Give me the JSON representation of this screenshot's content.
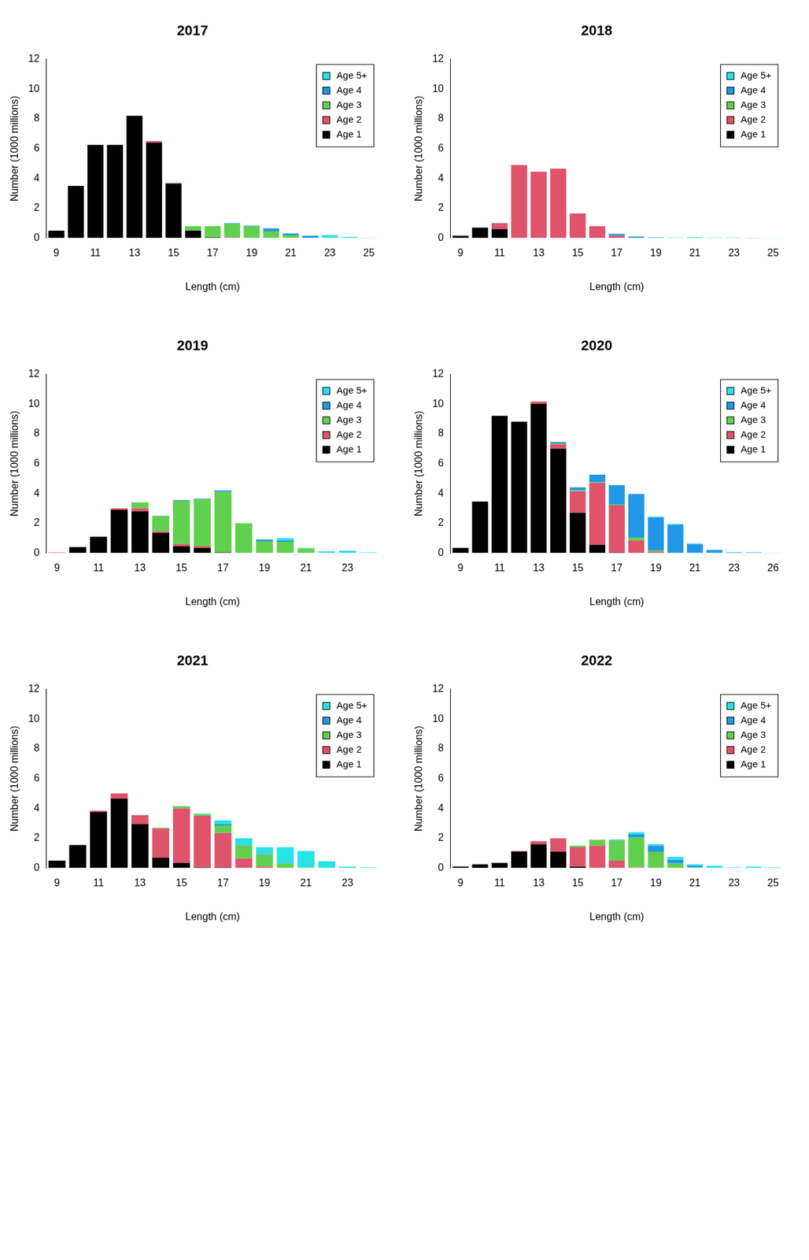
{
  "chart_data": [
    {
      "type": "bar",
      "title": "2017",
      "x_label": "Length (cm)",
      "y_label": "Number (1000 millions)",
      "categories": [
        "9",
        null,
        "11",
        null,
        "13",
        null,
        "15",
        null,
        "17",
        null,
        "19",
        null,
        "21",
        null,
        "23",
        null,
        "25"
      ],
      "series": [
        {
          "name": "Age 1",
          "color": "#000000",
          "values": [
            0.5,
            3.5,
            6.25,
            6.25,
            8.2,
            6.4,
            3.65,
            0.5,
            0.05,
            0,
            0,
            0,
            0,
            0,
            0,
            0,
            0
          ]
        },
        {
          "name": "Age 2",
          "color": "#DF536B",
          "values": [
            0,
            0,
            0,
            0,
            0,
            0.1,
            0,
            0,
            0,
            0.05,
            0,
            0,
            0,
            0,
            0,
            0,
            0
          ]
        },
        {
          "name": "Age 3",
          "color": "#61D04F",
          "values": [
            0,
            0,
            0,
            0,
            0,
            0,
            0.05,
            0.3,
            0.75,
            0.9,
            0.8,
            0.45,
            0.2,
            0,
            0,
            0,
            0
          ]
        },
        {
          "name": "Age 4",
          "color": "#2297E6",
          "values": [
            0,
            0,
            0,
            0,
            0,
            0,
            0,
            0,
            0,
            0.05,
            0.03,
            0.2,
            0.1,
            0.15,
            0,
            0,
            0
          ]
        },
        {
          "name": "Age 5+",
          "color": "#28E2E5",
          "values": [
            0,
            0,
            0,
            0,
            0,
            0,
            0,
            0,
            0,
            0,
            0,
            0.02,
            0.02,
            0.02,
            0.2,
            0.08,
            0.03
          ]
        }
      ],
      "ylim": [
        0,
        12
      ],
      "yticks": [
        0,
        2,
        4,
        6,
        8,
        10,
        12
      ],
      "stacked": true,
      "legend": "top-right",
      "grid": false
    },
    {
      "type": "bar",
      "title": "2018",
      "x_label": "Length (cm)",
      "y_label": "Number (1000 millions)",
      "categories": [
        "9",
        null,
        "11",
        null,
        "13",
        null,
        "15",
        null,
        "17",
        null,
        "19",
        null,
        "21",
        null,
        "23",
        null,
        "25"
      ],
      "series": [
        {
          "name": "Age 1",
          "color": "#000000",
          "values": [
            0.15,
            0.7,
            0.6,
            0,
            0,
            0,
            0,
            0,
            0,
            0,
            0,
            0,
            0,
            0,
            0,
            0,
            0
          ]
        },
        {
          "name": "Age 2",
          "color": "#DF536B",
          "values": [
            0,
            0,
            0.4,
            4.9,
            4.45,
            4.65,
            1.65,
            0.8,
            0.15,
            0,
            0,
            0,
            0,
            0,
            0,
            0,
            0
          ]
        },
        {
          "name": "Age 3",
          "color": "#61D04F",
          "values": [
            0,
            0,
            0,
            0,
            0,
            0,
            0,
            0,
            0.02,
            0,
            0,
            0,
            0,
            0,
            0,
            0,
            0
          ]
        },
        {
          "name": "Age 4",
          "color": "#2297E6",
          "values": [
            0,
            0,
            0,
            0,
            0,
            0,
            0,
            0,
            0.1,
            0.1,
            0.05,
            0.02,
            0.03,
            0.02,
            0.02,
            0.01,
            0
          ]
        },
        {
          "name": "Age 5+",
          "color": "#28E2E5",
          "values": [
            0,
            0,
            0,
            0,
            0,
            0,
            0,
            0,
            0.02,
            0.01,
            0.01,
            0.02,
            0.03,
            0.02,
            0.02,
            0.02,
            0.01
          ]
        }
      ],
      "ylim": [
        0,
        12
      ],
      "yticks": [
        0,
        2,
        4,
        6,
        8,
        10,
        12
      ],
      "stacked": true,
      "legend": "top-right",
      "grid": false
    },
    {
      "type": "bar",
      "title": "2019",
      "x_label": "Length (cm)",
      "y_label": "Number (1000 millions)",
      "categories": [
        "9",
        null,
        "11",
        null,
        "13",
        null,
        "15",
        null,
        "17",
        null,
        "19",
        null,
        "21",
        null,
        "23",
        null
      ],
      "series": [
        {
          "name": "Age 1",
          "color": "#000000",
          "values": [
            0,
            0.4,
            1.1,
            2.9,
            2.8,
            1.35,
            0.45,
            0.35,
            0.05,
            0,
            0,
            0,
            0,
            0,
            0,
            0
          ]
        },
        {
          "name": "Age 2",
          "color": "#DF536B",
          "values": [
            0.05,
            0,
            0,
            0.1,
            0.2,
            0.1,
            0.15,
            0.1,
            0,
            0,
            0,
            0,
            0,
            0,
            0,
            0
          ]
        },
        {
          "name": "Age 3",
          "color": "#61D04F",
          "values": [
            0,
            0,
            0,
            0,
            0.4,
            1.05,
            2.9,
            3.15,
            4.05,
            2.0,
            0.8,
            0.75,
            0.3,
            0.02,
            0,
            0
          ]
        },
        {
          "name": "Age 4",
          "color": "#2297E6",
          "values": [
            0,
            0,
            0,
            0,
            0,
            0,
            0.05,
            0.05,
            0.1,
            0,
            0.1,
            0.1,
            0,
            0.02,
            0.02,
            0
          ]
        },
        {
          "name": "Age 5+",
          "color": "#28E2E5",
          "values": [
            0,
            0,
            0,
            0,
            0,
            0,
            0,
            0,
            0,
            0,
            0.02,
            0.15,
            0.05,
            0.08,
            0.15,
            0.05
          ]
        }
      ],
      "ylim": [
        0,
        12
      ],
      "yticks": [
        0,
        2,
        4,
        6,
        8,
        10,
        12
      ],
      "stacked": true,
      "legend": "top-right",
      "grid": false
    },
    {
      "type": "bar",
      "title": "2020",
      "x_label": "Length (cm)",
      "y_label": "Number (1000 millions)",
      "categories": [
        "9",
        null,
        "11",
        null,
        "13",
        null,
        "15",
        null,
        "17",
        null,
        "19",
        null,
        "21",
        null,
        "23",
        null,
        "26"
      ],
      "series": [
        {
          "name": "Age 1",
          "color": "#000000",
          "values": [
            0.35,
            3.45,
            9.2,
            8.8,
            10.0,
            7.0,
            2.7,
            0.55,
            0.05,
            0,
            0,
            0,
            0,
            0,
            0,
            0,
            0
          ]
        },
        {
          "name": "Age 2",
          "color": "#DF536B",
          "values": [
            0,
            0,
            0,
            0,
            0.15,
            0.3,
            1.45,
            4.15,
            3.15,
            0.85,
            0.1,
            0,
            0,
            0,
            0,
            0,
            0
          ]
        },
        {
          "name": "Age 3",
          "color": "#61D04F",
          "values": [
            0,
            0,
            0,
            0,
            0,
            0.05,
            0.05,
            0.05,
            0.05,
            0.2,
            0.1,
            0,
            0,
            0,
            0,
            0,
            0
          ]
        },
        {
          "name": "Age 4",
          "color": "#2297E6",
          "values": [
            0,
            0,
            0,
            0,
            0,
            0.1,
            0.2,
            0.5,
            1.3,
            2.9,
            2.2,
            1.9,
            0.6,
            0.2,
            0.05,
            0.04,
            0
          ]
        },
        {
          "name": "Age 5+",
          "color": "#28E2E5",
          "values": [
            0,
            0,
            0,
            0,
            0,
            0,
            0,
            0,
            0,
            0,
            0.05,
            0.05,
            0.05,
            0.02,
            0.02,
            0.02,
            0.03
          ]
        }
      ],
      "ylim": [
        0,
        12
      ],
      "yticks": [
        0,
        2,
        4,
        6,
        8,
        10,
        12
      ],
      "stacked": true,
      "legend": "top-right",
      "grid": false
    },
    {
      "type": "bar",
      "title": "2021",
      "x_label": "Length (cm)",
      "y_label": "Number (1000 millions)",
      "categories": [
        "9",
        null,
        "11",
        null,
        "13",
        null,
        "15",
        null,
        "17",
        null,
        "19",
        null,
        "21",
        null,
        "23",
        null
      ],
      "series": [
        {
          "name": "Age 1",
          "color": "#000000",
          "values": [
            0.5,
            1.55,
            3.75,
            4.65,
            2.95,
            0.7,
            0.35,
            0.05,
            0.05,
            0,
            0,
            0,
            0,
            0,
            0,
            0
          ]
        },
        {
          "name": "Age 2",
          "color": "#DF536B",
          "values": [
            0,
            0,
            0.1,
            0.35,
            0.6,
            1.95,
            3.65,
            3.45,
            2.3,
            0.65,
            0.1,
            0,
            0,
            0,
            0,
            0
          ]
        },
        {
          "name": "Age 3",
          "color": "#61D04F",
          "values": [
            0,
            0,
            0,
            0,
            0,
            0.05,
            0.15,
            0.1,
            0.5,
            0.85,
            0.8,
            0.3,
            0.05,
            0,
            0,
            0
          ]
        },
        {
          "name": "Age 4",
          "color": "#2297E6",
          "values": [
            0,
            0,
            0,
            0,
            0,
            0,
            0,
            0,
            0.1,
            0.05,
            0.05,
            0.05,
            0,
            0,
            0,
            0
          ]
        },
        {
          "name": "Age 5+",
          "color": "#28E2E5",
          "values": [
            0,
            0,
            0,
            0,
            0,
            0,
            0,
            0.05,
            0.25,
            0.45,
            0.45,
            1.05,
            1.1,
            0.45,
            0.1,
            0.05
          ]
        }
      ],
      "ylim": [
        0,
        12
      ],
      "yticks": [
        0,
        2,
        4,
        6,
        8,
        10,
        12
      ],
      "stacked": true,
      "legend": "top-right",
      "grid": false
    },
    {
      "type": "bar",
      "title": "2022",
      "x_label": "Length (cm)",
      "y_label": "Number (1000 millions)",
      "categories": [
        "9",
        null,
        "11",
        null,
        "13",
        null,
        "15",
        null,
        "17",
        null,
        "19",
        null,
        "21",
        null,
        "23",
        null,
        "25"
      ],
      "series": [
        {
          "name": "Age 1",
          "color": "#000000",
          "values": [
            0.1,
            0.25,
            0.35,
            1.1,
            1.6,
            1.1,
            0.1,
            0,
            0,
            0,
            0,
            0,
            0,
            0,
            0,
            0,
            0
          ]
        },
        {
          "name": "Age 2",
          "color": "#DF536B",
          "values": [
            0,
            0,
            0,
            0.05,
            0.2,
            0.9,
            1.3,
            1.5,
            0.5,
            0.05,
            0,
            0,
            0,
            0,
            0,
            0,
            0
          ]
        },
        {
          "name": "Age 3",
          "color": "#61D04F",
          "values": [
            0,
            0,
            0,
            0,
            0,
            0,
            0.1,
            0.4,
            1.35,
            2.0,
            1.1,
            0.3,
            0.05,
            0,
            0,
            0,
            0
          ]
        },
        {
          "name": "Age 4",
          "color": "#2297E6",
          "values": [
            0,
            0,
            0,
            0,
            0,
            0,
            0,
            0,
            0.05,
            0.2,
            0.4,
            0.25,
            0.1,
            0,
            0,
            0,
            0
          ]
        },
        {
          "name": "Age 5+",
          "color": "#28E2E5",
          "values": [
            0,
            0,
            0,
            0,
            0,
            0,
            0,
            0,
            0,
            0.15,
            0.1,
            0.2,
            0.1,
            0.15,
            0.05,
            0.1,
            0.05
          ]
        }
      ],
      "ylim": [
        0,
        12
      ],
      "yticks": [
        0,
        2,
        4,
        6,
        8,
        10,
        12
      ],
      "stacked": true,
      "legend": "top-right",
      "grid": false
    }
  ]
}
